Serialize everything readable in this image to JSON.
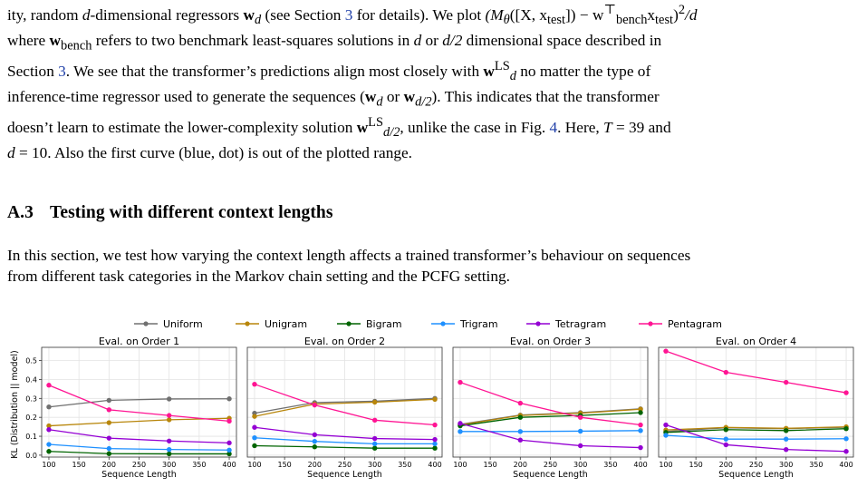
{
  "intro_paragraph": {
    "text_1": "ity, random ",
    "d": "d",
    "text_2": "-dimensional regressors ",
    "w_d": "w",
    "sub_d": "d",
    "text_3": " (see Section ",
    "section_ref": "3",
    "text_4": " for details). We plot ",
    "formula": "(M",
    "formula_sub": "θ",
    "formula_2": "([X, x",
    "formula_sub2": "test",
    "formula_3": "]) − w",
    "formula_sup": "⊤",
    "formula_sub3": "bench",
    "formula_4": "x",
    "formula_sub4": "test",
    "formula_5": ")",
    "formula_sup2": "2",
    "formula_6": "/d",
    "line2_1": "where ",
    "wbench": "w",
    "wbench_sub": "bench",
    "line2_2": " refers to two benchmark least-squares solutions in ",
    "line2_d": "d",
    "line2_3": " or ",
    "line2_d2": "d/2",
    "line2_4": " dimensional space described in",
    "line3_1": "Section ",
    "line3_ref": "3",
    "line3_2": ". We see that the transformer’s predictions align most closely with ",
    "line3_w": "w",
    "line3_sup": "LS",
    "line3_sub": "d",
    "line3_3": " no matter the type of",
    "line4_1": "inference-time regressor used to generate the sequences (",
    "line4_w": "w",
    "line4_sub": "d",
    "line4_2": " or ",
    "line4_w2": "w",
    "line4_sub2": "d/2",
    "line4_3": "). This indicates that the transformer",
    "line5_1": "doesn’t learn to estimate the lower-complexity solution ",
    "line5_w": "w",
    "line5_sup": "LS",
    "line5_sub": "d/2",
    "line5_2": ", unlike the case in Fig. ",
    "line5_ref": "4",
    "line5_3": ". Here, ",
    "line5_T": "T",
    "line5_4": " = 39 and",
    "line6_d": "d",
    "line6_1": " = 10. Also the first curve (blue, dot) is out of the plotted range."
  },
  "section": {
    "number": "A.3",
    "title": "Testing with different context lengths"
  },
  "section_paragraph": {
    "line1": "In this section, we test how varying the context length affects a trained transformer’s behaviour on sequences",
    "line2": "from different task categories in the Markov chain setting and the PCFG setting."
  },
  "chart_data": {
    "type": "line",
    "ylabel": "KL (Distribution || model)",
    "xlabel": "Sequence Length",
    "x": [
      100,
      200,
      300,
      400
    ],
    "xticks": [
      "100",
      "150",
      "200",
      "250",
      "300",
      "350",
      "400"
    ],
    "yticks": [
      "0.0",
      "0.1",
      "0.2",
      "0.3",
      "0.4",
      "0.5"
    ],
    "ylim": [
      -0.01,
      0.57
    ],
    "xlim": [
      88,
      412
    ],
    "grid": true,
    "legend_position": "top",
    "series_meta": [
      {
        "name": "Uniform",
        "color": "#707070"
      },
      {
        "name": "Unigram",
        "color": "#b8860b"
      },
      {
        "name": "Bigram",
        "color": "#006400"
      },
      {
        "name": "Trigram",
        "color": "#1e90ff"
      },
      {
        "name": "Tetragram",
        "color": "#9400d3"
      },
      {
        "name": "Pentagram",
        "color": "#ff1493"
      }
    ],
    "panels": [
      {
        "title": "Eval. on Order 1",
        "series": [
          {
            "name": "Uniform",
            "values": [
              0.255,
              0.29,
              0.297,
              0.298
            ]
          },
          {
            "name": "Unigram",
            "values": [
              0.155,
              0.172,
              0.187,
              0.195
            ]
          },
          {
            "name": "Bigram",
            "values": [
              0.02,
              0.008,
              0.007,
              0.007
            ]
          },
          {
            "name": "Trigram",
            "values": [
              0.057,
              0.035,
              0.03,
              0.027
            ]
          },
          {
            "name": "Tetragram",
            "values": [
              0.135,
              0.09,
              0.075,
              0.065
            ]
          },
          {
            "name": "Pentagram",
            "values": [
              0.37,
              0.24,
              0.21,
              0.18
            ]
          }
        ]
      },
      {
        "title": "Eval. on Order 2",
        "series": [
          {
            "name": "Uniform",
            "values": [
              0.222,
              0.278,
              0.285,
              0.3
            ]
          },
          {
            "name": "Unigram",
            "values": [
              0.205,
              0.27,
              0.28,
              0.295
            ]
          },
          {
            "name": "Bigram",
            "values": [
              0.05,
              0.044,
              0.037,
              0.037
            ]
          },
          {
            "name": "Trigram",
            "values": [
              0.092,
              0.073,
              0.06,
              0.06
            ]
          },
          {
            "name": "Tetragram",
            "values": [
              0.147,
              0.108,
              0.088,
              0.083
            ]
          },
          {
            "name": "Pentagram",
            "values": [
              0.375,
              0.265,
              0.185,
              0.16
            ]
          }
        ]
      },
      {
        "title": "Eval. on Order 3",
        "series": [
          {
            "name": "Uniform",
            "values": [
              0.163,
              0.212,
              0.225,
              0.245
            ]
          },
          {
            "name": "Unigram",
            "values": [
              0.16,
              0.21,
              0.222,
              0.243
            ]
          },
          {
            "name": "Bigram",
            "values": [
              0.155,
              0.2,
              0.21,
              0.225
            ]
          },
          {
            "name": "Trigram",
            "values": [
              0.125,
              0.125,
              0.127,
              0.13
            ]
          },
          {
            "name": "Tetragram",
            "values": [
              0.168,
              0.08,
              0.05,
              0.04
            ]
          },
          {
            "name": "Pentagram",
            "values": [
              0.385,
              0.275,
              0.2,
              0.16
            ]
          }
        ]
      },
      {
        "title": "Eval. on Order 4",
        "series": [
          {
            "name": "Uniform",
            "values": [
              0.125,
              0.145,
              0.14,
              0.148
            ]
          },
          {
            "name": "Unigram",
            "values": [
              0.133,
              0.147,
              0.142,
              0.15
            ]
          },
          {
            "name": "Bigram",
            "values": [
              0.12,
              0.135,
              0.13,
              0.14
            ]
          },
          {
            "name": "Trigram",
            "values": [
              0.105,
              0.085,
              0.085,
              0.087
            ]
          },
          {
            "name": "Tetragram",
            "values": [
              0.16,
              0.055,
              0.03,
              0.02
            ]
          },
          {
            "name": "Pentagram",
            "values": [
              0.55,
              0.438,
              0.385,
              0.33
            ]
          }
        ]
      }
    ]
  }
}
